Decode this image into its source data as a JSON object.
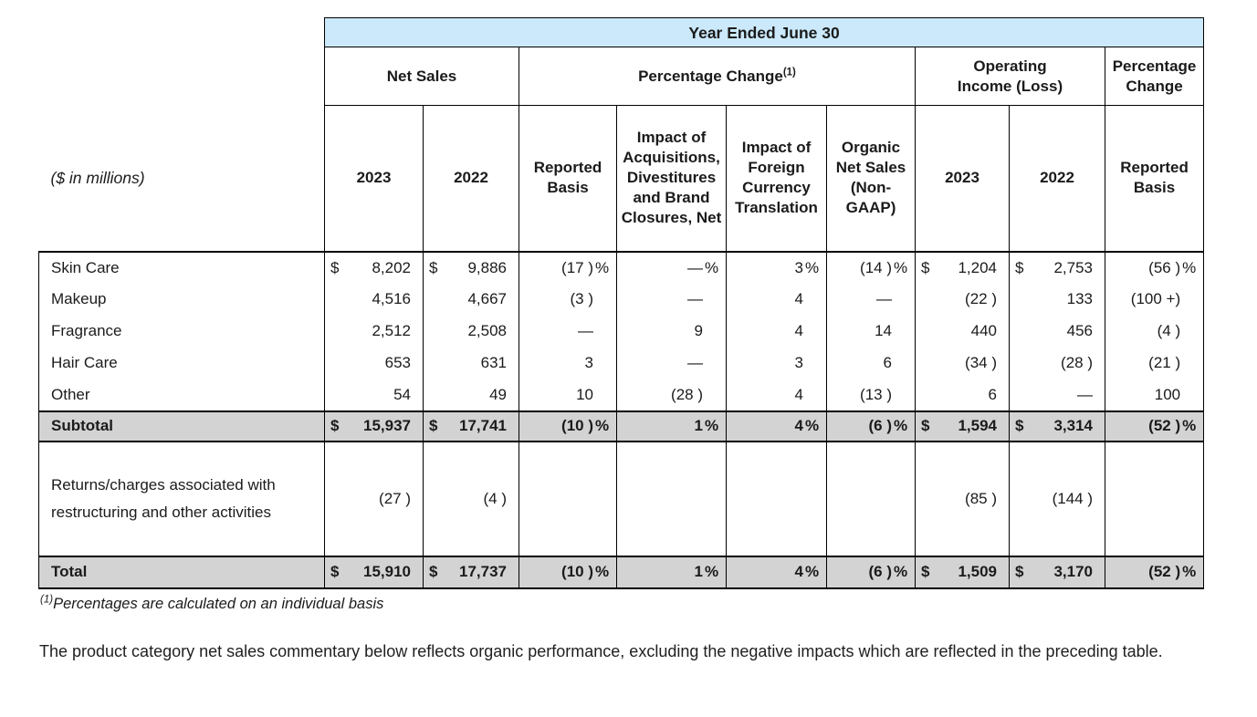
{
  "table": {
    "top_header": "Year Ended June 30",
    "unit_label": "($ in millions)",
    "groups": [
      {
        "label": "Net Sales",
        "sup": "",
        "span": 2
      },
      {
        "label": "Percentage Change",
        "sup": "(1)",
        "span": 4
      },
      {
        "line1": "Operating",
        "line2": "Income (Loss)",
        "span": 2
      },
      {
        "line1": "Percentage",
        "line2": "Change",
        "span": 1
      }
    ],
    "columns": [
      "2023",
      "2022",
      "Reported Basis",
      "Impact of Acquisitions, Divestitures and Brand Closures, Net",
      "Impact of Foreign Currency Translation",
      "Organic Net Sales (Non-GAAP)",
      "2023",
      "2022",
      "Reported Basis"
    ],
    "column_kinds": [
      "money",
      "money",
      "pct",
      "pct",
      "pct",
      "pct",
      "money",
      "money",
      "pct"
    ],
    "rows": [
      {
        "label": "Skin Care",
        "kind": "item",
        "cells": [
          {
            "sym": "$",
            "val": "8,202",
            "suf": ""
          },
          {
            "sym": "$",
            "val": "9,886",
            "suf": ""
          },
          {
            "sym": "",
            "val": "(17 )",
            "suf": "%"
          },
          {
            "sym": "",
            "val": "—",
            "suf": "%"
          },
          {
            "sym": "",
            "val": "3",
            "suf": "%"
          },
          {
            "sym": "",
            "val": "(14 )",
            "suf": "%"
          },
          {
            "sym": "$",
            "val": "1,204",
            "suf": ""
          },
          {
            "sym": "$",
            "val": "2,753",
            "suf": ""
          },
          {
            "sym": "",
            "val": "(56 )",
            "suf": "%"
          }
        ]
      },
      {
        "label": "Makeup",
        "kind": "item",
        "cells": [
          {
            "sym": "",
            "val": "4,516",
            "suf": ""
          },
          {
            "sym": "",
            "val": "4,667",
            "suf": ""
          },
          {
            "sym": "",
            "val": "(3 )",
            "suf": ""
          },
          {
            "sym": "",
            "val": "—",
            "suf": ""
          },
          {
            "sym": "",
            "val": "4",
            "suf": ""
          },
          {
            "sym": "",
            "val": "—",
            "suf": ""
          },
          {
            "sym": "",
            "val": "(22 )",
            "suf": ""
          },
          {
            "sym": "",
            "val": "133",
            "suf": ""
          },
          {
            "sym": "",
            "val": "(100 +)",
            "suf": ""
          }
        ]
      },
      {
        "label": "Fragrance",
        "kind": "item",
        "cells": [
          {
            "sym": "",
            "val": "2,512",
            "suf": ""
          },
          {
            "sym": "",
            "val": "2,508",
            "suf": ""
          },
          {
            "sym": "",
            "val": "—",
            "suf": ""
          },
          {
            "sym": "",
            "val": "9",
            "suf": ""
          },
          {
            "sym": "",
            "val": "4",
            "suf": ""
          },
          {
            "sym": "",
            "val": "14",
            "suf": ""
          },
          {
            "sym": "",
            "val": "440",
            "suf": ""
          },
          {
            "sym": "",
            "val": "456",
            "suf": ""
          },
          {
            "sym": "",
            "val": "(4 )",
            "suf": ""
          }
        ]
      },
      {
        "label": "Hair Care",
        "kind": "item",
        "cells": [
          {
            "sym": "",
            "val": "653",
            "suf": ""
          },
          {
            "sym": "",
            "val": "631",
            "suf": ""
          },
          {
            "sym": "",
            "val": "3",
            "suf": ""
          },
          {
            "sym": "",
            "val": "—",
            "suf": ""
          },
          {
            "sym": "",
            "val": "3",
            "suf": ""
          },
          {
            "sym": "",
            "val": "6",
            "suf": ""
          },
          {
            "sym": "",
            "val": "(34 )",
            "suf": ""
          },
          {
            "sym": "",
            "val": "(28 )",
            "suf": ""
          },
          {
            "sym": "",
            "val": "(21 )",
            "suf": ""
          }
        ]
      },
      {
        "label": "Other",
        "kind": "item",
        "cells": [
          {
            "sym": "",
            "val": "54",
            "suf": ""
          },
          {
            "sym": "",
            "val": "49",
            "suf": ""
          },
          {
            "sym": "",
            "val": "10",
            "suf": ""
          },
          {
            "sym": "",
            "val": "(28 )",
            "suf": ""
          },
          {
            "sym": "",
            "val": "4",
            "suf": ""
          },
          {
            "sym": "",
            "val": "(13 )",
            "suf": ""
          },
          {
            "sym": "",
            "val": "6",
            "suf": ""
          },
          {
            "sym": "",
            "val": "—",
            "suf": ""
          },
          {
            "sym": "",
            "val": "100",
            "suf": ""
          }
        ]
      },
      {
        "label": "Subtotal",
        "kind": "subtotal",
        "cells": [
          {
            "sym": "$",
            "val": "15,937",
            "suf": ""
          },
          {
            "sym": "$",
            "val": "17,741",
            "suf": ""
          },
          {
            "sym": "",
            "val": "(10 )",
            "suf": "%"
          },
          {
            "sym": "",
            "val": "1",
            "suf": "%"
          },
          {
            "sym": "",
            "val": "4",
            "suf": "%"
          },
          {
            "sym": "",
            "val": "(6 )",
            "suf": "%"
          },
          {
            "sym": "$",
            "val": "1,594",
            "suf": ""
          },
          {
            "sym": "$",
            "val": "3,314",
            "suf": ""
          },
          {
            "sym": "",
            "val": "(52 )",
            "suf": "%"
          }
        ]
      },
      {
        "label": "Returns/charges associated with restructuring and other activities",
        "kind": "returns",
        "cells": [
          {
            "sym": "",
            "val": "(27 )",
            "suf": ""
          },
          {
            "sym": "",
            "val": "(4 )",
            "suf": ""
          },
          {
            "sym": "",
            "val": "",
            "suf": ""
          },
          {
            "sym": "",
            "val": "",
            "suf": ""
          },
          {
            "sym": "",
            "val": "",
            "suf": ""
          },
          {
            "sym": "",
            "val": "",
            "suf": ""
          },
          {
            "sym": "",
            "val": "(85 )",
            "suf": ""
          },
          {
            "sym": "",
            "val": "(144 )",
            "suf": ""
          },
          {
            "sym": "",
            "val": "",
            "suf": ""
          }
        ]
      },
      {
        "label": "Total",
        "kind": "total",
        "cells": [
          {
            "sym": "$",
            "val": "15,910",
            "suf": ""
          },
          {
            "sym": "$",
            "val": "17,737",
            "suf": ""
          },
          {
            "sym": "",
            "val": "(10 )",
            "suf": "%"
          },
          {
            "sym": "",
            "val": "1",
            "suf": "%"
          },
          {
            "sym": "",
            "val": "4",
            "suf": "%"
          },
          {
            "sym": "",
            "val": "(6 )",
            "suf": "%"
          },
          {
            "sym": "$",
            "val": "1,509",
            "suf": ""
          },
          {
            "sym": "$",
            "val": "3,170",
            "suf": ""
          },
          {
            "sym": "",
            "val": "(52 )",
            "suf": "%"
          }
        ]
      }
    ]
  },
  "footnote": {
    "sup": "(1)",
    "text": "Percentages are calculated on an individual basis"
  },
  "commentary": "The product category net sales commentary below reflects organic performance, excluding the negative impacts which are reflected in the preceding table."
}
